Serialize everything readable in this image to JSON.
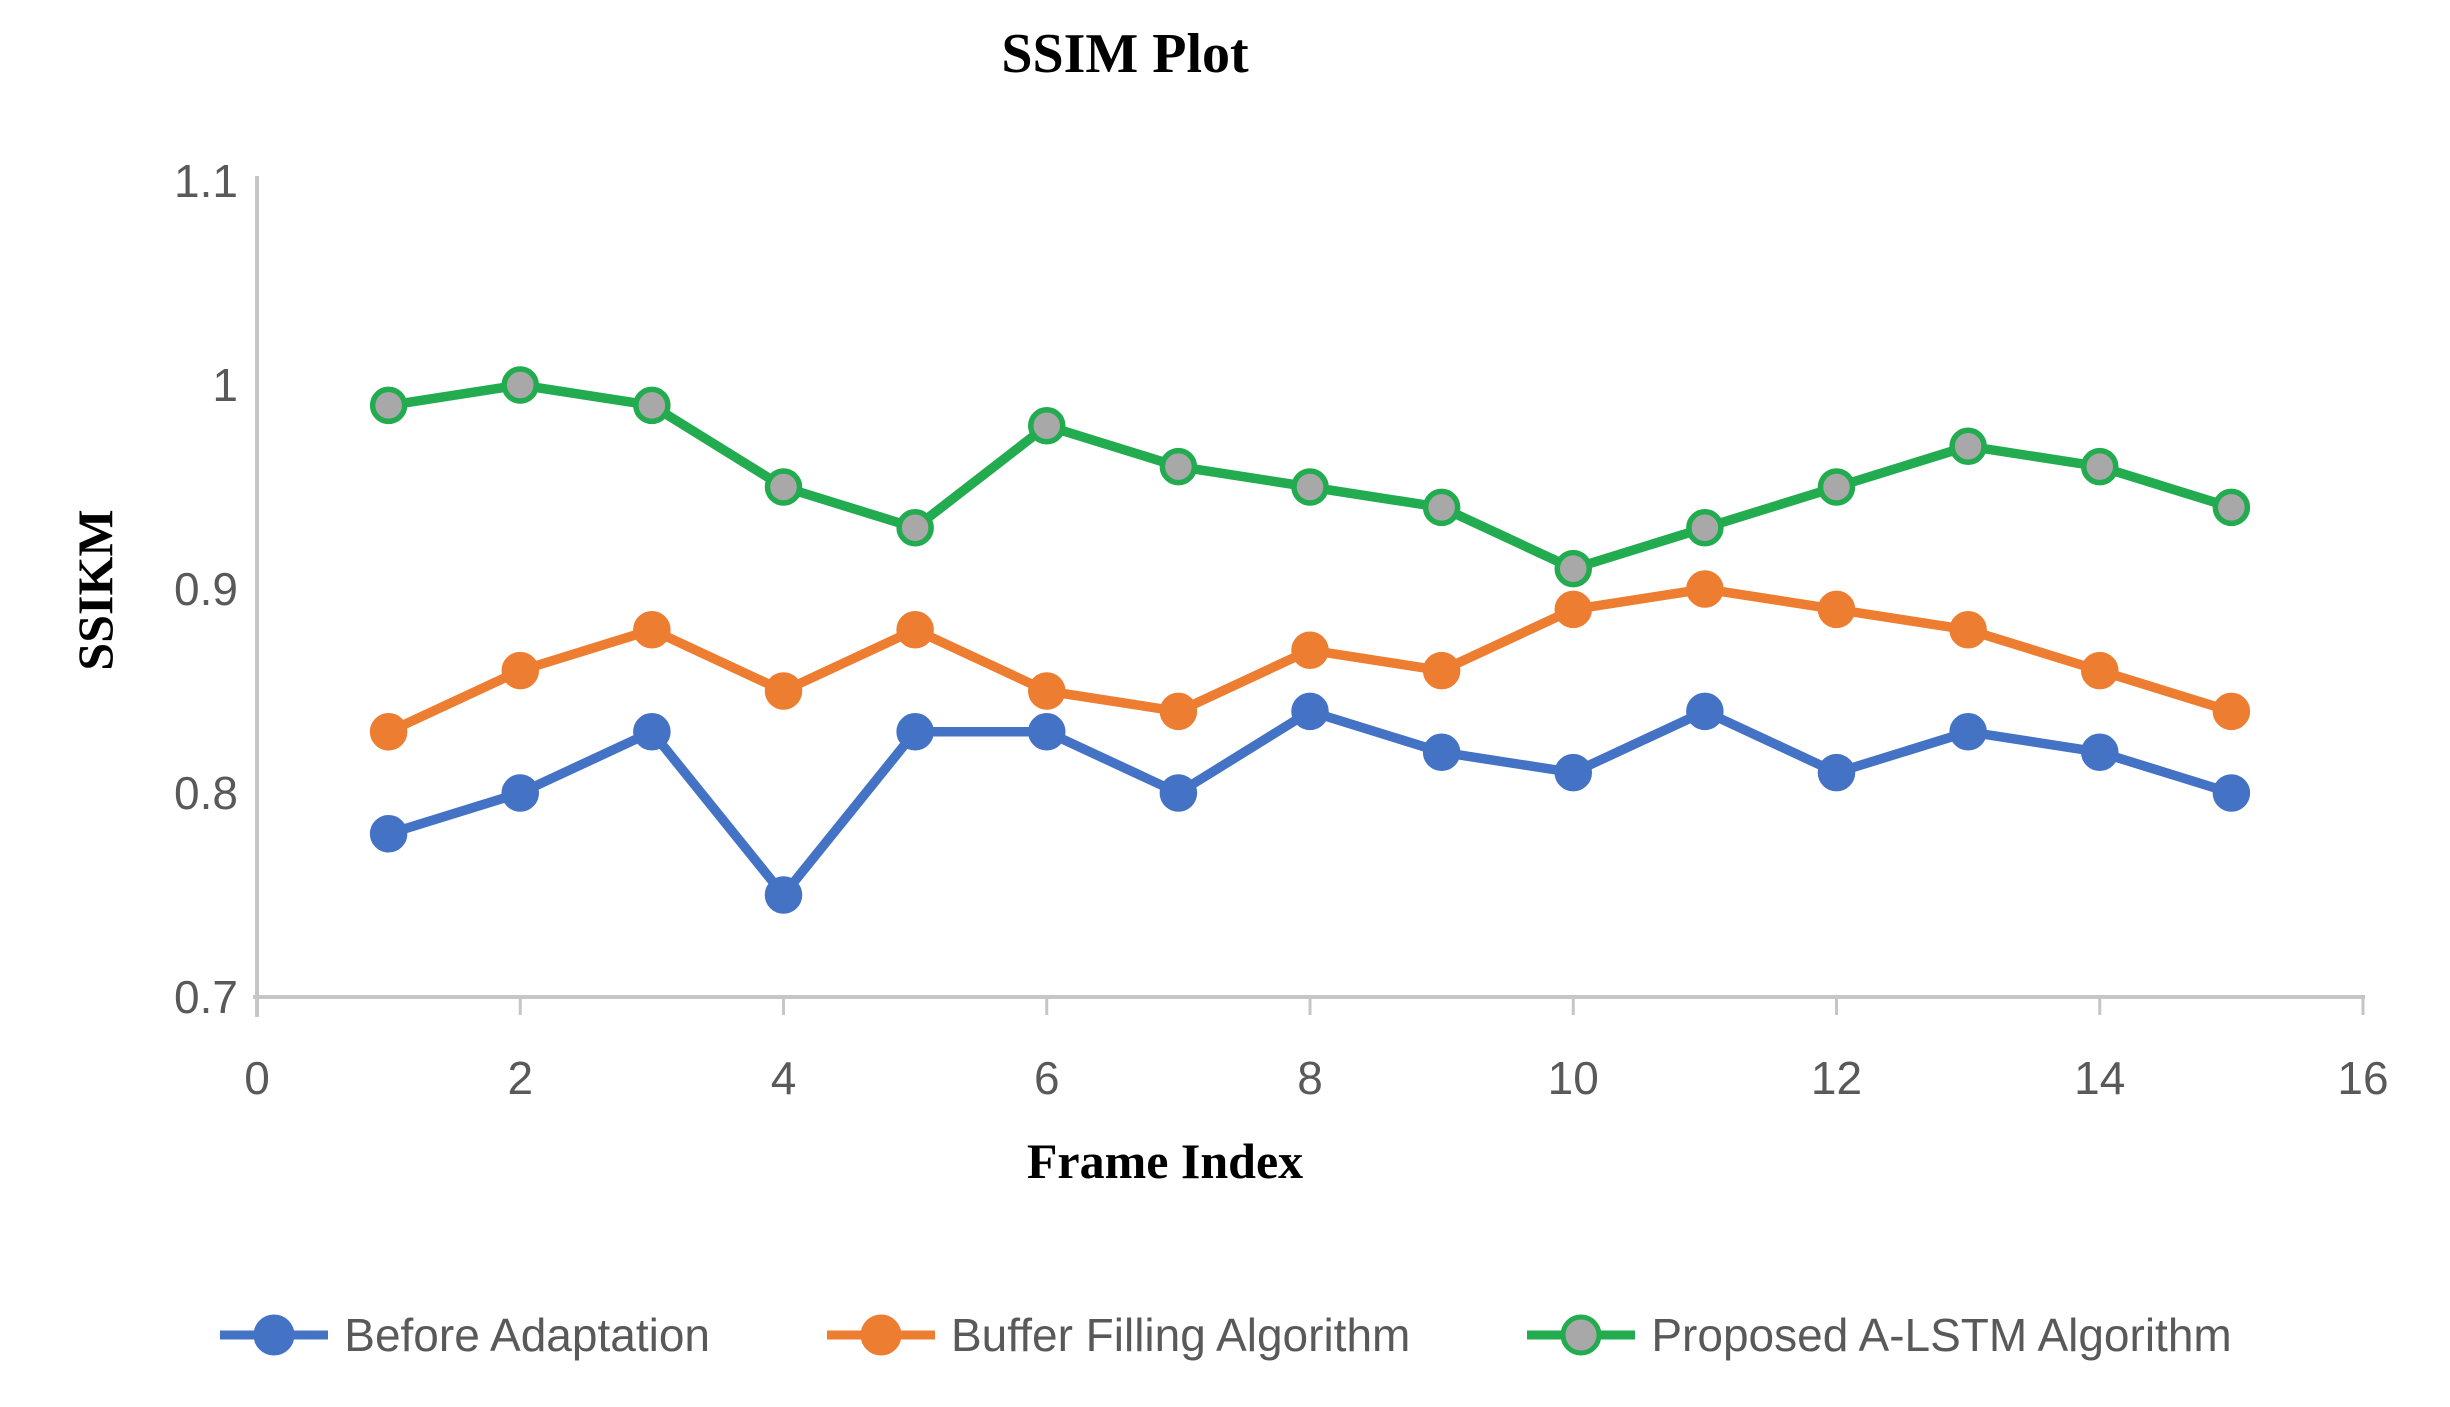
{
  "title": "SSIM Plot",
  "colors": {
    "axis_line": "#c6c6c6",
    "tick_text": "#595959",
    "legend_text": "#595959",
    "title_text": "#000000",
    "green_marker_fill": "#a8a8a8"
  },
  "chart_data": {
    "type": "line",
    "title": "SSIM Plot",
    "xlabel": "Frame Index",
    "ylabel": "SSIKM",
    "x": [
      1,
      2,
      3,
      4,
      5,
      6,
      7,
      8,
      9,
      10,
      11,
      12,
      13,
      14,
      15
    ],
    "xlim": [
      0,
      16
    ],
    "ylim": [
      0.7,
      1.1
    ],
    "x_ticks": [
      0,
      2,
      4,
      6,
      8,
      10,
      12,
      14,
      16
    ],
    "x_tick_labels": [
      "0",
      "2",
      "4",
      "6",
      "8",
      "10",
      "12",
      "14",
      "16"
    ],
    "y_ticks": [
      0.7,
      0.8,
      0.9,
      1.0,
      1.1
    ],
    "y_tick_labels": [
      "0.7",
      "0.8",
      "0.9",
      "1",
      "1.1"
    ],
    "grid": false,
    "legend_position": "bottom",
    "series": [
      {
        "name": "Before Adaptation",
        "color": "#4472C4",
        "marker_fill": "#4472C4",
        "marker_stroke": "#4472C4",
        "values": [
          0.78,
          0.8,
          0.83,
          0.75,
          0.83,
          0.83,
          0.8,
          0.84,
          0.82,
          0.81,
          0.84,
          0.81,
          0.83,
          0.82,
          0.8
        ]
      },
      {
        "name": "Buffer Filling Algorithm",
        "color": "#ED7D31",
        "marker_fill": "#ED7D31",
        "marker_stroke": "#ED7D31",
        "values": [
          0.83,
          0.86,
          0.88,
          0.85,
          0.88,
          0.85,
          0.84,
          0.87,
          0.86,
          0.89,
          0.9,
          0.89,
          0.88,
          0.86,
          0.84
        ]
      },
      {
        "name": "Proposed A-LSTM Algorithm",
        "color": "#22AB4F",
        "marker_fill": "#a8a8a8",
        "marker_stroke": "#22AB4F",
        "values": [
          0.99,
          1.0,
          0.99,
          0.95,
          0.93,
          0.98,
          0.96,
          0.95,
          0.94,
          0.91,
          0.93,
          0.95,
          0.97,
          0.96,
          0.94
        ]
      }
    ]
  }
}
